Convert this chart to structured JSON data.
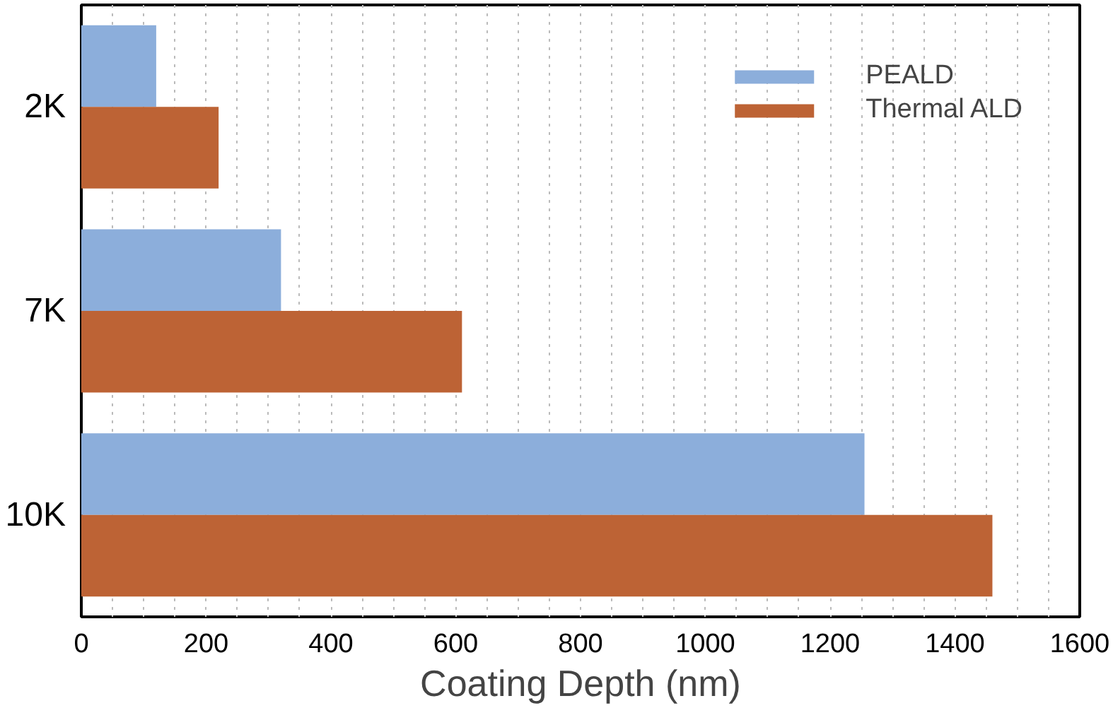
{
  "chart_data": {
    "type": "bar",
    "orientation": "horizontal",
    "xlabel": "Coating Depth (nm)",
    "categories": [
      "2K",
      "7K",
      "10K"
    ],
    "series": [
      {
        "name": "PEALD",
        "color": "#8caedb",
        "values": [
          120,
          320,
          1255
        ]
      },
      {
        "name": "Thermal ALD",
        "color": "#bd6335",
        "values": [
          220,
          610,
          1460
        ]
      }
    ],
    "xlim": [
      0,
      1600
    ],
    "xticks": [
      0,
      {
        "value": 50,
        "label": null
      },
      {
        "value": 100,
        "label": null
      },
      {
        "value": 150,
        "label": null
      },
      200,
      {
        "value": 250,
        "label": null
      },
      {
        "value": 300,
        "label": null
      },
      {
        "value": 350,
        "label": null
      },
      400,
      {
        "value": 450,
        "label": null
      },
      {
        "value": 500,
        "label": null
      },
      {
        "value": 550,
        "label": null
      },
      600,
      {
        "value": 650,
        "label": null
      },
      {
        "value": 700,
        "label": null
      },
      {
        "value": 750,
        "label": null
      },
      800,
      {
        "value": 850,
        "label": null
      },
      {
        "value": 900,
        "label": null
      },
      {
        "value": 950,
        "label": null
      },
      1000,
      {
        "value": 1050,
        "label": null
      },
      {
        "value": 1100,
        "label": null
      },
      {
        "value": 1150,
        "label": null
      },
      1200,
      {
        "value": 1250,
        "label": null
      },
      {
        "value": 1300,
        "label": null
      },
      {
        "value": 1350,
        "label": null
      },
      1400,
      {
        "value": 1450,
        "label": null
      },
      {
        "value": 1500,
        "label": null
      },
      {
        "value": 1550,
        "label": null
      },
      1600
    ],
    "grid": "x",
    "legend": "top right"
  }
}
